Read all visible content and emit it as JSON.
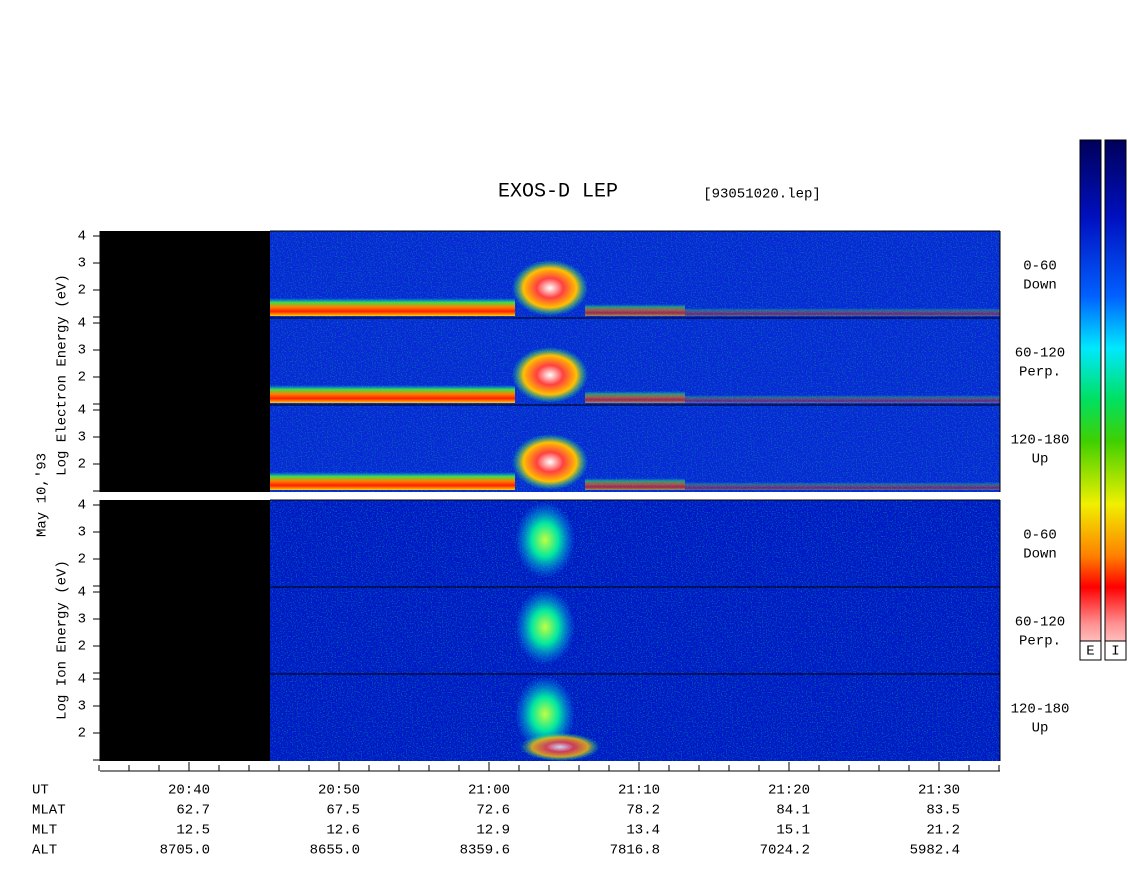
{
  "header": {
    "title": "EXOS-D LEP",
    "file": "[93051020.lep]",
    "date": "May 10,'93"
  },
  "electron": {
    "ylabel": "Log Electron Energy (eV)",
    "panels": [
      {
        "label": [
          "0-60",
          "Down"
        ],
        "yticks": [
          "4",
          "3",
          "2"
        ]
      },
      {
        "label": [
          "60-120",
          "Perp."
        ],
        "yticks": [
          "4",
          "3",
          "2"
        ]
      },
      {
        "label": [
          "120-180",
          "Up"
        ],
        "yticks": [
          "4",
          "3",
          "2"
        ]
      }
    ]
  },
  "ion": {
    "ylabel": "Log Ion Energy (eV)",
    "panels": [
      {
        "label": [
          "0-60",
          "Down"
        ],
        "yticks": [
          "4",
          "3",
          "2"
        ]
      },
      {
        "label": [
          "60-120",
          "Perp."
        ],
        "yticks": [
          "4",
          "3",
          "2"
        ]
      },
      {
        "label": [
          "120-180",
          "Up"
        ],
        "yticks": [
          "4",
          "3",
          "2"
        ]
      }
    ]
  },
  "colorbars": [
    "E",
    "I"
  ],
  "ephemeris": {
    "rows": [
      {
        "name": "UT",
        "values": [
          "20:40",
          "20:50",
          "21:00",
          "21:10",
          "21:20",
          "21:30"
        ]
      },
      {
        "name": "MLAT",
        "values": [
          "62.7",
          "67.5",
          "72.6",
          "78.2",
          "84.1",
          "83.5"
        ]
      },
      {
        "name": "MLT",
        "values": [
          "12.5",
          "12.6",
          "12.9",
          "13.4",
          "15.1",
          "21.2"
        ]
      },
      {
        "name": "ALT",
        "values": [
          "8705.0",
          "8655.0",
          "8359.6",
          "7816.8",
          "7024.2",
          "5982.4"
        ]
      }
    ]
  }
}
